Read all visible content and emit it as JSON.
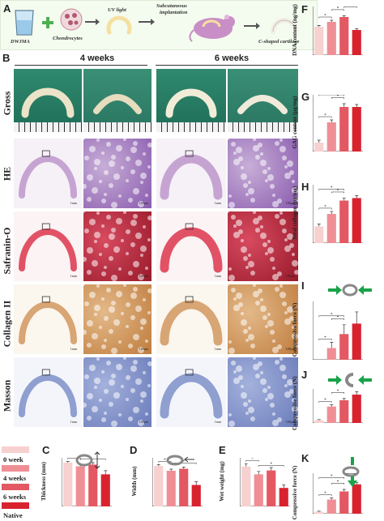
{
  "panel_a": {
    "letter": "A",
    "items": {
      "dwjma": "DWJMA",
      "chondrocytes": "Chondrocytes",
      "uv_light": "UV light",
      "implant_line1": "Subcutaneous",
      "implant_line2": "implantation",
      "result": "C-shaped cartilage"
    }
  },
  "panel_b": {
    "letter": "B",
    "week4": "4 weeks",
    "week6": "6 weeks",
    "rows": [
      "Gross",
      "HE",
      "Safranin-O",
      "Collagen II",
      "Masson"
    ],
    "scale_1mm": "1mm",
    "scale_100um": "100μm"
  },
  "colors": {
    "w0": "#f7d0d0",
    "w4": "#ef8f95",
    "w6": "#e35862",
    "native": "#d8232f",
    "error": "#333333"
  },
  "legend": {
    "items": [
      "0 week",
      "4 weeks",
      "6 weeks",
      "Native"
    ]
  },
  "icons": {
    "ring_compress_lateral": "c-ring-lateral-compression-icon",
    "ring_compress_opening": "c-ring-opening-compression-icon",
    "ring_compress_vertical": "c-ring-vertical-compression-icon"
  },
  "chart_data": [
    {
      "id": "F",
      "type": "bar",
      "ylabel": "DNA content (ng/mg)",
      "ylim": [
        0,
        300
      ],
      "yticks": [
        0,
        50,
        100,
        150,
        200,
        250,
        300
      ],
      "values": [
        175,
        205,
        235,
        155
      ],
      "errors": [
        8,
        10,
        8,
        8
      ],
      "sig": [
        [
          0,
          1
        ],
        [
          1,
          2
        ],
        [
          2,
          3
        ],
        [
          0,
          2
        ]
      ]
    },
    {
      "id": "G",
      "type": "bar",
      "ylabel": "GAG content (μg/mg)",
      "ylim": [
        0,
        70
      ],
      "yticks": [
        0,
        10,
        20,
        30,
        40,
        50,
        60,
        70
      ],
      "values": [
        11,
        36,
        55,
        55
      ],
      "errors": [
        3,
        3,
        4,
        3
      ],
      "sig": [
        [
          0,
          1
        ],
        [
          1,
          2
        ],
        [
          0,
          2
        ]
      ]
    },
    {
      "id": "H",
      "type": "bar",
      "ylabel": "Total collagen (μg/mg)",
      "ylim": [
        0,
        70
      ],
      "yticks": [
        0,
        10,
        20,
        30,
        40,
        50,
        60,
        70
      ],
      "values": [
        20,
        35,
        51,
        54
      ],
      "errors": [
        3,
        3,
        3,
        3
      ],
      "sig": [
        [
          0,
          1
        ],
        [
          1,
          2
        ],
        [
          0,
          2
        ]
      ]
    },
    {
      "id": "I",
      "type": "bar",
      "ylabel": "Compressive force (N)",
      "ylim": [
        0,
        0.25
      ],
      "yticks": [
        0,
        0.05,
        0.1,
        0.15,
        0.2,
        0.25
      ],
      "values": [
        0,
        0.05,
        0.11,
        0.155
      ],
      "errors": [
        0,
        0.025,
        0.04,
        0.05
      ],
      "sig": [
        [
          0,
          1
        ],
        [
          1,
          2
        ],
        [
          0,
          2
        ]
      ]
    },
    {
      "id": "J",
      "type": "bar",
      "ylabel": "Compressive force (N)",
      "ylim": [
        0,
        0.6
      ],
      "yticks": [
        0,
        0.1,
        0.2,
        0.3,
        0.4,
        0.5,
        0.6
      ],
      "values": [
        0.05,
        0.29,
        0.4,
        0.5
      ],
      "errors": [
        0.01,
        0.03,
        0.03,
        0.05
      ],
      "sig": [
        [
          0,
          1
        ],
        [
          1,
          2
        ],
        [
          2,
          3
        ],
        [
          0,
          2
        ]
      ]
    },
    {
      "id": "K",
      "type": "bar",
      "ylabel": "Compressive force (N)",
      "ylim": [
        0,
        0.4
      ],
      "yticks": [
        0,
        0.1,
        0.2,
        0.3,
        0.4
      ],
      "values": [
        0.02,
        0.14,
        0.22,
        0.29
      ],
      "errors": [
        0.005,
        0.015,
        0.02,
        0.02
      ],
      "sig": [
        [
          0,
          1
        ],
        [
          1,
          2
        ],
        [
          2,
          3
        ],
        [
          0,
          2
        ]
      ]
    },
    {
      "id": "C",
      "type": "bar",
      "ylabel": "Thickness (mm)",
      "ylim": [
        0,
        2.0
      ],
      "yticks": [
        0,
        0.5,
        1.0,
        1.5,
        2.0
      ],
      "values": [
        1.8,
        1.65,
        1.72,
        1.32
      ],
      "errors": [
        0.05,
        0.06,
        0.08,
        0.15
      ],
      "sig": [
        [
          0,
          1
        ],
        [
          1,
          3
        ],
        [
          0,
          3
        ]
      ]
    },
    {
      "id": "D",
      "type": "bar",
      "ylabel": "Width (mm)",
      "ylim": [
        0,
        1.2
      ],
      "yticks": [
        0,
        0.2,
        0.4,
        0.6,
        0.8,
        1.0,
        1.2
      ],
      "values": [
        1.0,
        0.88,
        0.93,
        0.53
      ],
      "errors": [
        0.03,
        0.04,
        0.04,
        0.08
      ],
      "sig": [
        [
          0,
          1
        ],
        [
          1,
          3
        ],
        [
          0,
          3
        ]
      ]
    },
    {
      "id": "E",
      "type": "bar",
      "ylabel": "Wet weight (mg)",
      "ylim": [
        0,
        50
      ],
      "yticks": [
        0,
        10,
        20,
        30,
        40,
        50
      ],
      "values": [
        41,
        33,
        37,
        19
      ],
      "errors": [
        3,
        3,
        3,
        3
      ],
      "sig": [
        [
          0,
          1
        ],
        [
          1,
          3
        ],
        [
          0,
          3
        ]
      ]
    }
  ]
}
